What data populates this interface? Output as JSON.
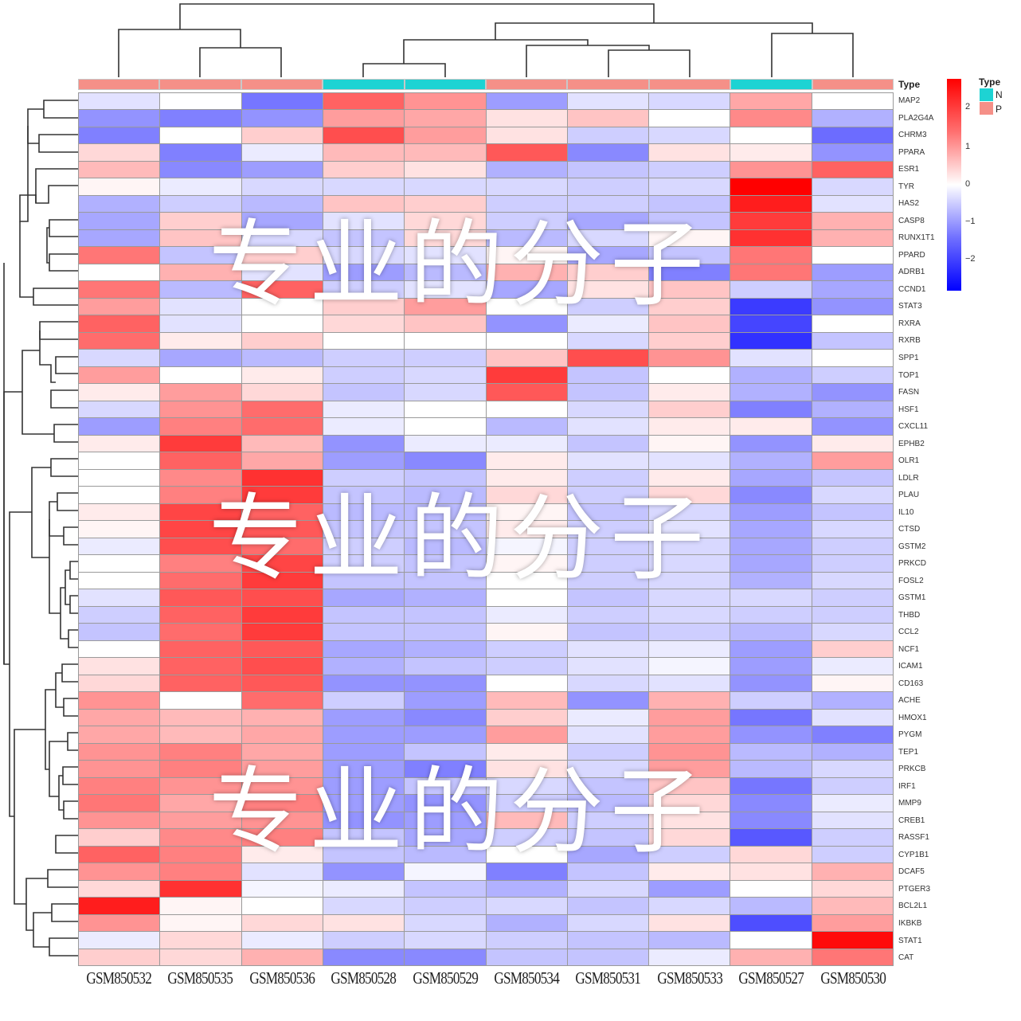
{
  "chart_data": {
    "type": "heatmap",
    "title": "",
    "xlabel": "",
    "ylabel": "",
    "columns": [
      "GSM850532",
      "GSM850535",
      "GSM850536",
      "GSM850528",
      "GSM850529",
      "GSM850534",
      "GSM850531",
      "GSM850533",
      "GSM850527",
      "GSM850530"
    ],
    "column_type": [
      "P",
      "P",
      "P",
      "N",
      "N",
      "P",
      "P",
      "P",
      "N",
      "P"
    ],
    "rows": [
      "MAP2",
      "PLA2G4A",
      "CHRM3",
      "PPARA",
      "ESR1",
      "TYR",
      "HAS2",
      "CASP8",
      "RUNX1T1",
      "PPARD",
      "ADRB1",
      "CCND1",
      "STAT3",
      "RXRA",
      "RXRB",
      "SPP1",
      "TOP1",
      "FASN",
      "HSF1",
      "CXCL11",
      "EPHB2",
      "OLR1",
      "LDLR",
      "PLAU",
      "IL10",
      "CTSD",
      "GSTM2",
      "PRKCD",
      "FOSL2",
      "GSTM1",
      "THBD",
      "CCL2",
      "NCF1",
      "ICAM1",
      "CD163",
      "ACHE",
      "HMOX1",
      "PYGM",
      "TEP1",
      "PRKCB",
      "IRF1",
      "MMP9",
      "CREB1",
      "RASSF1",
      "CYP1B1",
      "DCAF5",
      "PTGER3",
      "BCL2L1",
      "IKBKB",
      "STAT1",
      "CAT"
    ],
    "values": [
      [
        -0.3,
        0.0,
        -1.4,
        1.6,
        1.1,
        -1.0,
        -0.3,
        -0.4,
        0.9,
        0.0
      ],
      [
        -1.1,
        -1.3,
        -1.1,
        1.0,
        0.9,
        0.3,
        0.6,
        0.0,
        1.2,
        -0.8
      ],
      [
        -1.3,
        0.0,
        0.5,
        1.8,
        1.0,
        0.3,
        -0.5,
        -0.4,
        0.0,
        -1.5
      ],
      [
        0.4,
        -1.3,
        -0.2,
        0.7,
        0.7,
        1.7,
        -1.2,
        0.3,
        0.2,
        -1.1
      ],
      [
        0.7,
        -1.2,
        -1.0,
        0.5,
        0.3,
        -0.8,
        -0.6,
        -0.5,
        1.1,
        1.6
      ],
      [
        0.1,
        -0.2,
        -0.4,
        -0.4,
        -0.4,
        -0.4,
        -0.5,
        -0.4,
        2.6,
        -0.4
      ],
      [
        -0.8,
        -0.5,
        -0.7,
        0.6,
        0.5,
        -0.5,
        -0.5,
        -0.6,
        2.3,
        -0.3
      ],
      [
        -0.9,
        0.5,
        -0.9,
        -0.3,
        0.4,
        -0.5,
        -0.9,
        -0.6,
        2.0,
        0.8
      ],
      [
        -0.9,
        0.6,
        -0.4,
        -0.6,
        0.4,
        -0.7,
        -0.4,
        0.1,
        2.1,
        0.8
      ],
      [
        1.4,
        -0.6,
        0.5,
        -0.4,
        -0.3,
        0.1,
        -0.9,
        -0.6,
        1.4,
        0.0
      ],
      [
        0.0,
        0.8,
        -0.3,
        -1.0,
        -0.7,
        0.8,
        0.5,
        -1.3,
        1.4,
        -1.0
      ],
      [
        1.4,
        -0.7,
        1.6,
        -0.5,
        -0.3,
        -0.9,
        0.3,
        0.6,
        -0.5,
        -0.9
      ],
      [
        1.0,
        -0.3,
        0.0,
        0.5,
        1.0,
        0.0,
        -0.5,
        0.5,
        -2.0,
        -1.1
      ],
      [
        1.6,
        -0.3,
        0.0,
        0.4,
        0.6,
        -1.1,
        -0.2,
        0.6,
        -1.9,
        0.0
      ],
      [
        1.5,
        0.2,
        0.5,
        0.0,
        0.0,
        0.0,
        -0.4,
        0.5,
        -2.1,
        -0.6
      ],
      [
        -0.4,
        -0.9,
        -0.7,
        -0.5,
        -0.5,
        0.6,
        1.8,
        1.1,
        -0.3,
        0.0
      ],
      [
        1.0,
        0.0,
        0.2,
        -0.5,
        -0.4,
        2.0,
        -0.6,
        0.0,
        -0.8,
        -0.5
      ],
      [
        0.2,
        1.0,
        0.4,
        -0.6,
        -0.4,
        1.7,
        -0.6,
        0.2,
        -0.8,
        -1.1
      ],
      [
        -0.4,
        1.1,
        1.5,
        -0.2,
        0.0,
        0.0,
        -0.4,
        0.5,
        -1.3,
        -0.8
      ],
      [
        -1.0,
        1.3,
        1.5,
        -0.2,
        0.0,
        -0.7,
        -0.3,
        0.2,
        0.2,
        -1.1
      ],
      [
        0.2,
        2.0,
        0.7,
        -1.1,
        -0.2,
        -0.2,
        -0.6,
        0.1,
        -1.1,
        0.2
      ],
      [
        0.0,
        1.6,
        0.9,
        -1.0,
        -1.2,
        0.2,
        -0.3,
        -0.3,
        -0.8,
        1.0
      ],
      [
        0.0,
        1.2,
        2.1,
        -0.5,
        -0.6,
        0.2,
        -0.5,
        0.2,
        -0.9,
        -0.6
      ],
      [
        0.0,
        1.3,
        2.0,
        -0.6,
        -0.7,
        0.4,
        -0.5,
        0.4,
        -1.2,
        -0.4
      ],
      [
        0.2,
        1.9,
        1.6,
        -0.7,
        -0.7,
        0.1,
        -0.6,
        -0.4,
        -1.0,
        -0.6
      ],
      [
        0.1,
        1.9,
        1.7,
        -0.6,
        -0.6,
        0.2,
        -0.5,
        -0.3,
        -0.9,
        -0.4
      ],
      [
        -0.2,
        1.8,
        1.5,
        -0.5,
        -0.7,
        -0.1,
        -0.5,
        -0.4,
        -0.9,
        -0.5
      ],
      [
        0.0,
        1.3,
        1.9,
        -0.5,
        -0.6,
        0.1,
        -0.5,
        -0.4,
        -0.9,
        -0.5
      ],
      [
        0.0,
        1.5,
        2.0,
        -0.6,
        -0.6,
        0.0,
        -0.5,
        -0.4,
        -0.8,
        -0.4
      ],
      [
        -0.3,
        1.7,
        1.8,
        -0.9,
        -0.8,
        0.0,
        -0.6,
        -0.4,
        -0.4,
        -0.5
      ],
      [
        -0.5,
        1.6,
        2.0,
        -0.6,
        -0.6,
        -0.2,
        -0.5,
        -0.4,
        -0.5,
        -0.5
      ],
      [
        -0.6,
        1.5,
        2.0,
        -0.6,
        -0.6,
        0.1,
        -0.6,
        -0.5,
        -0.7,
        -0.4
      ],
      [
        0.0,
        1.6,
        1.7,
        -0.9,
        -0.8,
        -0.5,
        -0.3,
        -0.2,
        -1.0,
        0.5
      ],
      [
        0.3,
        1.6,
        1.8,
        -0.8,
        -0.6,
        -0.5,
        -0.3,
        -0.1,
        -1.0,
        -0.2
      ],
      [
        0.4,
        1.6,
        1.7,
        -1.1,
        -1.1,
        0.0,
        -0.4,
        -0.3,
        -1.1,
        0.1
      ],
      [
        1.1,
        0.0,
        1.5,
        -0.5,
        -1.0,
        0.7,
        -1.1,
        0.8,
        -0.5,
        -0.8
      ],
      [
        0.9,
        0.7,
        0.8,
        -1.0,
        -1.2,
        0.5,
        -0.2,
        1.0,
        -1.4,
        -0.3
      ],
      [
        0.9,
        0.7,
        0.9,
        -1.0,
        -1.0,
        1.0,
        -0.3,
        1.0,
        -1.1,
        -1.3
      ],
      [
        1.1,
        1.3,
        0.9,
        -1.0,
        -0.6,
        0.2,
        -0.5,
        1.1,
        -0.7,
        -0.8
      ],
      [
        1.1,
        1.3,
        1.0,
        -1.0,
        -1.3,
        0.3,
        -0.4,
        1.0,
        -0.7,
        -0.4
      ],
      [
        1.3,
        1.1,
        1.1,
        -1.0,
        -0.6,
        -0.4,
        -0.6,
        0.6,
        -1.4,
        -0.5
      ],
      [
        1.4,
        0.9,
        1.3,
        -1.0,
        -1.1,
        -0.5,
        -0.7,
        0.4,
        -1.2,
        -0.2
      ],
      [
        1.1,
        1.0,
        1.1,
        -1.1,
        -1.0,
        0.7,
        -0.5,
        0.3,
        -1.2,
        -0.3
      ],
      [
        0.5,
        1.2,
        1.3,
        -0.6,
        -0.9,
        -0.5,
        -0.6,
        0.4,
        -1.7,
        -0.5
      ],
      [
        1.6,
        1.3,
        0.2,
        -0.6,
        -0.7,
        0.0,
        -0.9,
        -0.5,
        0.4,
        -0.5
      ],
      [
        1.1,
        1.3,
        -0.3,
        -1.1,
        -0.1,
        -1.3,
        -0.6,
        0.2,
        0.3,
        0.8
      ],
      [
        0.4,
        2.1,
        -0.1,
        -0.2,
        -0.6,
        -0.8,
        -0.4,
        -1.0,
        0.0,
        0.4
      ],
      [
        2.3,
        0.1,
        0.0,
        -0.4,
        -0.5,
        -0.4,
        -0.6,
        -0.4,
        -0.7,
        0.7
      ],
      [
        1.1,
        0.1,
        0.4,
        0.3,
        -0.4,
        -0.8,
        -0.4,
        0.3,
        -1.8,
        1.0
      ],
      [
        -0.2,
        0.4,
        -0.2,
        -0.5,
        -0.4,
        -0.5,
        -0.6,
        -0.7,
        0.0,
        2.5
      ],
      [
        0.5,
        0.4,
        0.8,
        -1.2,
        -1.2,
        -0.6,
        -0.6,
        -0.2,
        0.8,
        1.4
      ]
    ],
    "color_scale": {
      "min": -2.6,
      "max": 2.6,
      "low": "#0000ff",
      "mid": "#ffffff",
      "high": "#ff0000"
    },
    "colorbar_ticks": [
      "2",
      "1",
      "0",
      "-1",
      "-2"
    ],
    "legend": {
      "title": "Type",
      "entries": [
        {
          "label": "N",
          "color": "#1dd3d3"
        },
        {
          "label": "P",
          "color": "#f59088"
        }
      ]
    },
    "annotation_label": "Type",
    "dendrogram_rows": true,
    "dendrogram_cols": true
  },
  "labels": {
    "annotation": "Type",
    "legend_title": "Type",
    "legend_n": "N",
    "legend_p": "P",
    "cb_2": "2",
    "cb_1": "1",
    "cb_0": "0",
    "cb_m1": "−1",
    "cb_m2": "−2"
  },
  "watermark": "专业的分子"
}
